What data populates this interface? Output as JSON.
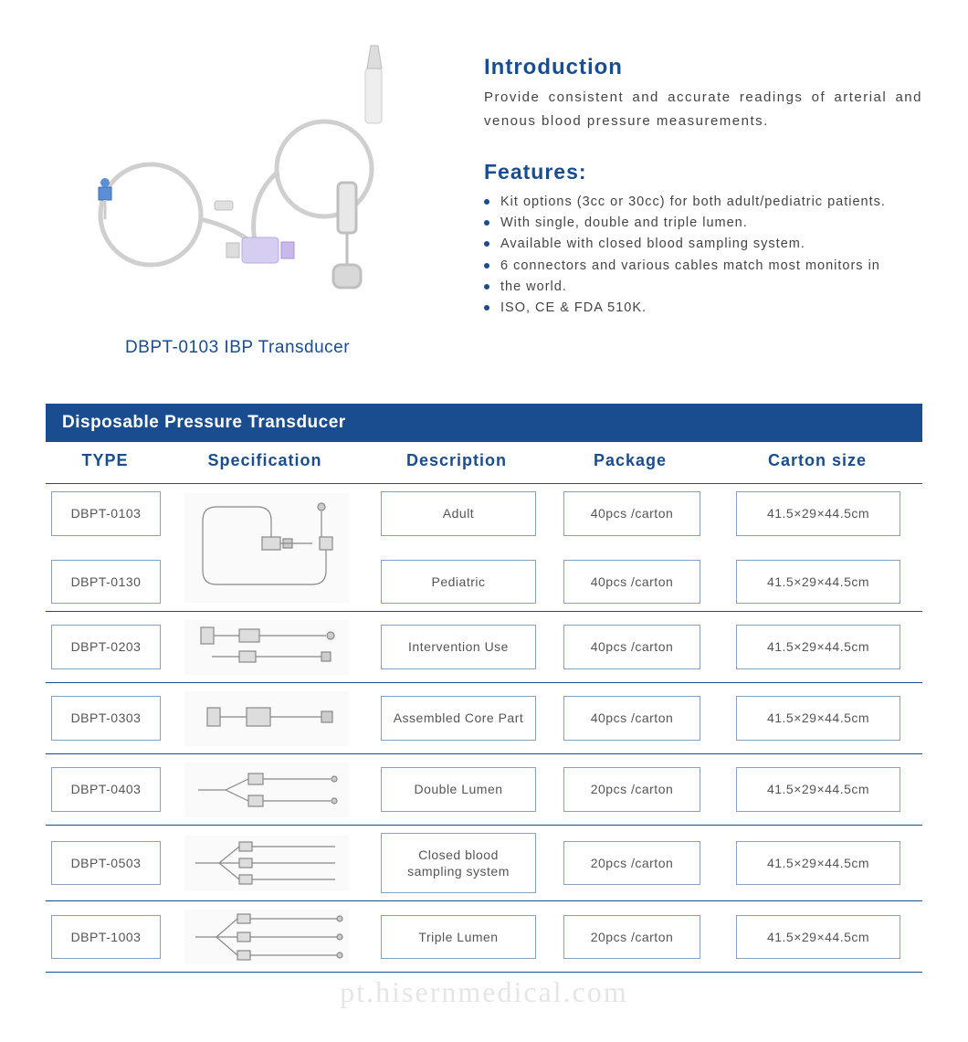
{
  "colors": {
    "primary": "#1a4d8f",
    "text": "#444444",
    "cell_text": "#555555",
    "cell_border": "#8aa0c0",
    "background": "#ffffff"
  },
  "typography": {
    "title_fontsize": 24,
    "features_title_fontsize": 23,
    "caption_fontsize": 19,
    "body_fontsize": 15,
    "feature_item_fontsize": 14.5,
    "table_header_fontsize": 18,
    "cell_fontsize": 14
  },
  "product": {
    "caption": "DBPT-0103 IBP Transducer"
  },
  "introduction": {
    "title": "Introduction",
    "text": "Provide consistent and accurate readings of arterial and venous blood pressure measurements."
  },
  "features": {
    "title": "Features:",
    "items": [
      "Kit options (3cc or 30cc) for both adult/pediatric patients.",
      "With single, double and triple lumen.",
      "Available with closed blood sampling system.",
      "6 connectors and various cables match most monitors in",
      "the world.",
      "ISO, CE & FDA 510K."
    ]
  },
  "table": {
    "title": "Disposable Pressure Transducer",
    "columns": [
      "TYPE",
      "Specification",
      "Description",
      "Package",
      "Carton  size"
    ],
    "rows": [
      {
        "types": [
          "DBPT-0103",
          "DBPT-0130"
        ],
        "spec_kind": "loop-single",
        "descriptions": [
          "Adult",
          "Pediatric"
        ],
        "packages": [
          "40pcs /carton",
          "40pcs /carton"
        ],
        "sizes": [
          "41.5×29×44.5cm",
          "41.5×29×44.5cm"
        ],
        "tall": true
      },
      {
        "types": [
          "DBPT-0203"
        ],
        "spec_kind": "short-a",
        "descriptions": [
          "Intervention Use"
        ],
        "packages": [
          "40pcs /carton"
        ],
        "sizes": [
          "41.5×29×44.5cm"
        ]
      },
      {
        "types": [
          "DBPT-0303"
        ],
        "spec_kind": "short-b",
        "descriptions": [
          "Assembled Core Part"
        ],
        "packages": [
          "40pcs /carton"
        ],
        "sizes": [
          "41.5×29×44.5cm"
        ]
      },
      {
        "types": [
          "DBPT-0403"
        ],
        "spec_kind": "double",
        "descriptions": [
          "Double Lumen"
        ],
        "packages": [
          "20pcs /carton"
        ],
        "sizes": [
          "41.5×29×44.5cm"
        ]
      },
      {
        "types": [
          "DBPT-0503"
        ],
        "spec_kind": "triple-a",
        "descriptions": [
          "Closed blood sampling system"
        ],
        "packages": [
          "20pcs /carton"
        ],
        "sizes": [
          "41.5×29×44.5cm"
        ]
      },
      {
        "types": [
          "DBPT-1003"
        ],
        "spec_kind": "triple-b",
        "descriptions": [
          "Triple Lumen"
        ],
        "packages": [
          "20pcs /carton"
        ],
        "sizes": [
          "41.5×29×44.5cm"
        ]
      }
    ]
  },
  "watermark": "pt.hisernmedical.com",
  "spec_svgs": {
    "loop-single": "<svg viewBox='0 0 180 120' xmlns='http://www.w3.org/2000/svg'><g stroke='#888' stroke-width='1.2' fill='none'><path d='M20 30 Q20 15 35 15 L80 15 Q95 15 95 30 L95 50'/><rect x='85' y='48' width='20' height='14' fill='#ddd'/><rect x='108' y='50' width='10' height='10' fill='#ccc'/><path d='M105 55 L140 55'/><path d='M20 30 L20 85 Q20 100 35 100 L140 100 Q155 100 155 85 L155 60'/><rect x='148' y='48' width='14' height='14' fill='#ddd'/><circle cx='150' cy='15' r='4' fill='#ccc'/><path d='M150 20 L150 48'/></g></svg>",
    "short-a": "<svg viewBox='0 0 180 60' xmlns='http://www.w3.org/2000/svg'><g stroke='#888' stroke-width='1.2' fill='none'><rect x='18' y='8' width='14' height='18' fill='#ddd'/><path d='M32 17 L60 17'/><rect x='60' y='10' width='22' height='14' fill='#ddd'/><path d='M82 17 L155 17'/><circle cx='160' cy='17' r='4' fill='#ccc'/><path d='M30 40 L60 40'/><rect x='60' y='34' width='18' height='12' fill='#ddd'/><path d='M78 40 L150 40'/><rect x='150' y='35' width='10' height='10' fill='#ccc'/></g></svg>",
    "short-b": "<svg viewBox='0 0 180 60' xmlns='http://www.w3.org/2000/svg'><g stroke='#888' stroke-width='1.2' fill='none'><rect x='25' y='18' width='14' height='20' fill='#ddd'/><path d='M39 28 L68 28'/><rect x='68' y='18' width='26' height='20' fill='#ddd'/><path d='M94 28 L150 28'/><rect x='150' y='22' width='12' height='12' fill='#ccc'/></g></svg>",
    "double": "<svg viewBox='0 0 180 60' xmlns='http://www.w3.org/2000/svg'><g stroke='#888' stroke-width='1.2' fill='none'><path d='M15 30 L45 30'/><path d='M45 30 L70 18'/><path d='M45 30 L70 42'/><rect x='70' y='12' width='16' height='12' fill='#ddd'/><rect x='70' y='36' width='16' height='12' fill='#ddd'/><path d='M86 18 L160 18'/><path d='M86 42 L160 42'/><circle cx='164' cy='18' r='3' fill='#ccc'/><circle cx='164' cy='42' r='3' fill='#ccc'/></g></svg>",
    "triple-a": "<svg viewBox='0 0 180 60' xmlns='http://www.w3.org/2000/svg'><g stroke='#888' stroke-width='1.2' fill='none'><path d='M12 30 L38 30'/><path d='M38 30 L60 12'/><path d='M38 30 L60 30'/><path d='M38 30 L60 48'/><rect x='60' y='7' width='14' height='10' fill='#ddd'/><rect x='60' y='25' width='14' height='10' fill='#ddd'/><rect x='60' y='43' width='14' height='10' fill='#ddd'/><path d='M74 12 L165 12'/><path d='M74 30 L165 30'/><path d='M74 48 L165 48'/></g></svg>",
    "triple-b": "<svg viewBox='0 0 180 60' xmlns='http://www.w3.org/2000/svg'><g stroke='#888' stroke-width='1.2' fill='none'><path d='M12 30 L35 30'/><path d='M35 30 L58 10'/><path d='M35 30 L58 30'/><path d='M35 30 L58 50'/><rect x='58' y='5' width='14' height='10' fill='#ddd'/><rect x='58' y='25' width='14' height='10' fill='#ddd'/><rect x='58' y='45' width='14' height='10' fill='#ddd'/><path d='M72 10 L168 10'/><path d='M72 30 L168 30'/><path d='M72 50 L168 50'/><circle cx='170' cy='10' r='3' fill='#ccc'/><circle cx='170' cy='30' r='3' fill='#ccc'/><circle cx='170' cy='50' r='3' fill='#ccc'/></g></svg>"
  }
}
